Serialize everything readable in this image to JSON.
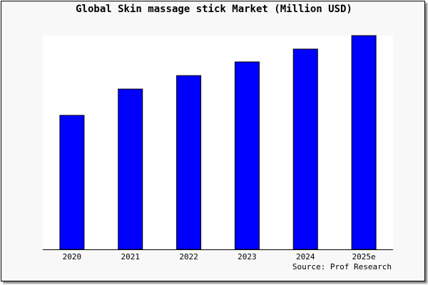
{
  "chart_data": {
    "type": "bar",
    "title": "Global Skin massage stick Market (Million USD)",
    "categories": [
      "2020",
      "2021",
      "2022",
      "2023",
      "2024",
      "2025e"
    ],
    "values": [
      62.7,
      75.0,
      81.3,
      87.7,
      93.7,
      100
    ],
    "ylim": [
      0,
      100
    ],
    "xlabel": "",
    "ylabel": "",
    "grid": false,
    "bar_color": "#0000ff",
    "source": "Source: Prof Research"
  }
}
